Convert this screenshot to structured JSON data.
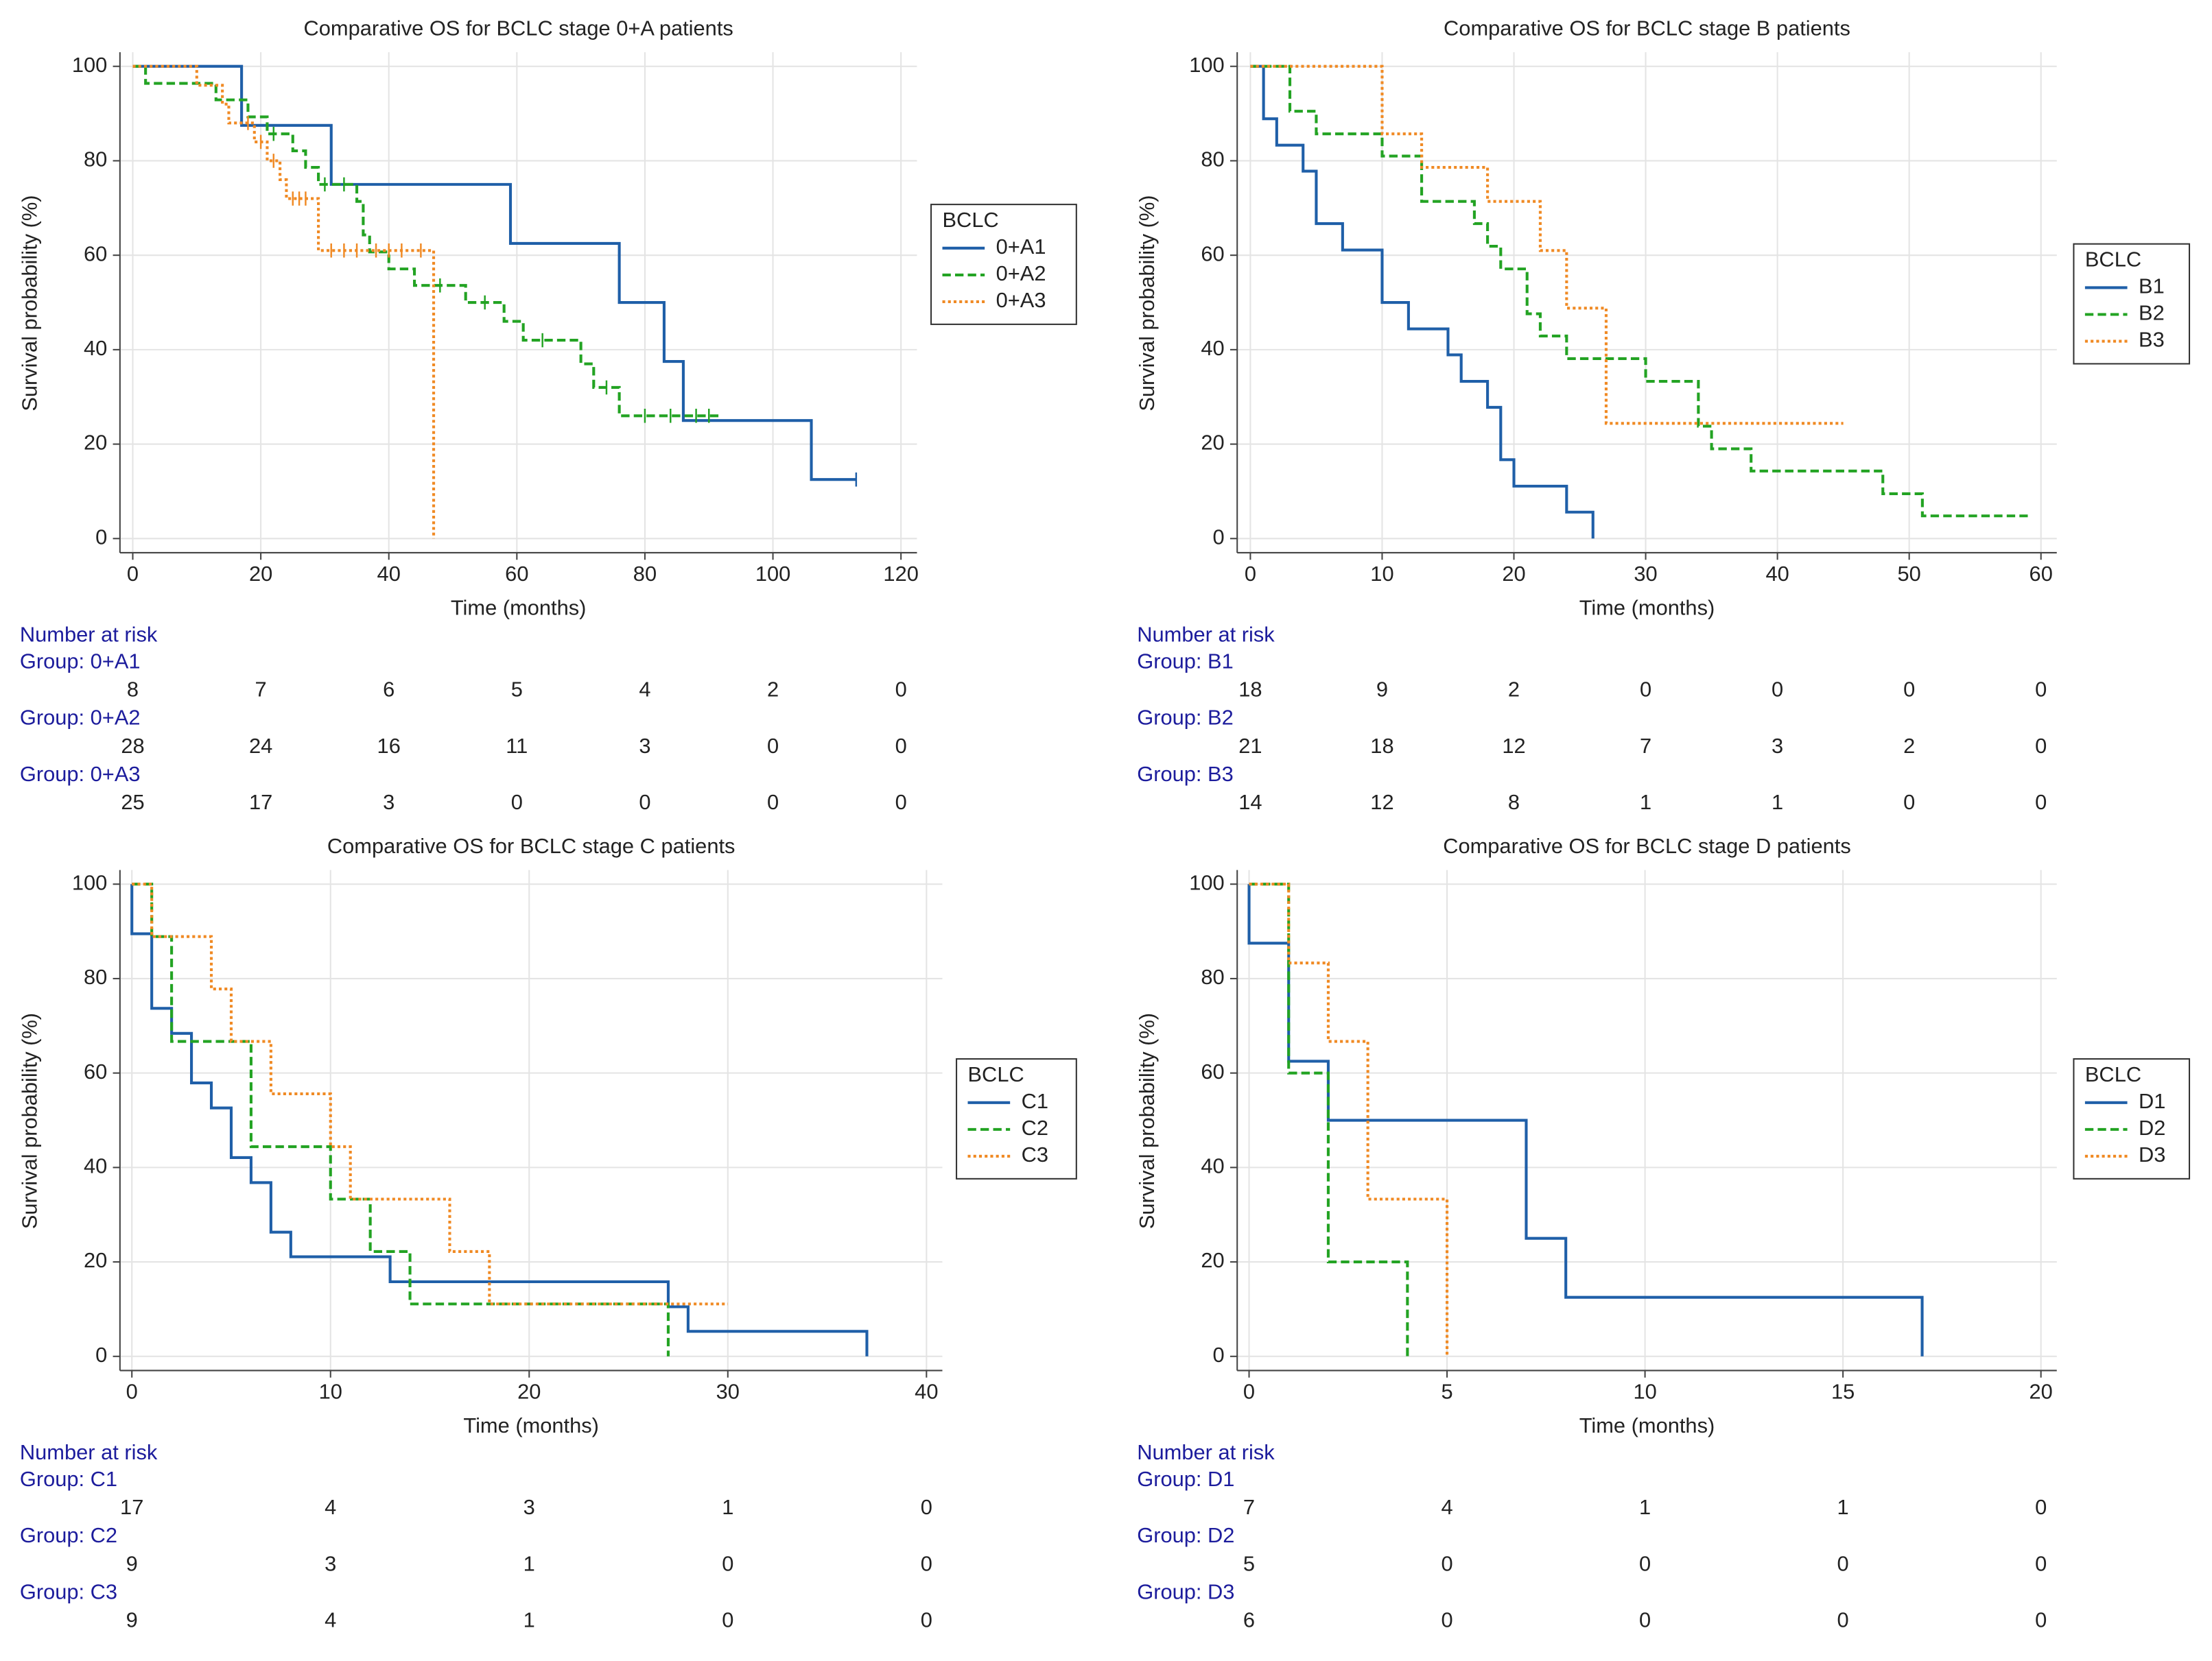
{
  "chart_data": [
    {
      "type": "step",
      "title": "Comparative OS for BCLC stage 0+A patients",
      "xlabel": "Time (months)",
      "ylabel": "Survival probability (%)",
      "xlim": [
        -2,
        122.5
      ],
      "xticks": [
        0,
        20,
        40,
        60,
        80,
        100,
        120
      ],
      "ylim": [
        -3,
        103
      ],
      "yticks": [
        0,
        20,
        40,
        60,
        80,
        100
      ],
      "grid": true,
      "legend_title": "BCLC",
      "series": [
        {
          "name": "0+A1",
          "color": "#1f5fa8",
          "dash": "solid",
          "x": [
            0,
            17,
            31,
            59,
            76,
            83,
            86,
            106,
            113
          ],
          "values": [
            100,
            87.5,
            75,
            62.5,
            50,
            37.5,
            25,
            12.5,
            12.5
          ],
          "censored": [
            113
          ]
        },
        {
          "name": "0+A2",
          "color": "#23a323",
          "dash": "dashed",
          "x": [
            0,
            2,
            13,
            18,
            21,
            25,
            27,
            29,
            35,
            36,
            37,
            40,
            44,
            52,
            58,
            61,
            70,
            72,
            76,
            92
          ],
          "values": [
            100,
            96.4,
            92.9,
            89.3,
            85.7,
            82.1,
            78.6,
            75,
            71.4,
            64.3,
            60.7,
            57.1,
            53.6,
            50,
            46,
            42,
            37,
            32,
            26,
            26
          ],
          "censored": [
            22,
            30,
            33,
            48,
            55,
            64,
            74,
            80,
            84,
            88,
            90
          ]
        },
        {
          "name": "0+A3",
          "color": "#f08a24",
          "dash": "dotted",
          "x": [
            0,
            10,
            14,
            15,
            19,
            21,
            23,
            24,
            29,
            47
          ],
          "values": [
            100,
            96,
            92,
            88,
            84,
            80,
            76,
            72,
            61,
            0
          ],
          "censored": [
            18,
            20,
            22,
            25,
            26,
            27,
            31,
            33,
            35,
            38,
            40,
            42,
            45
          ]
        }
      ],
      "risk_table": {
        "title": "Number at risk",
        "groups": [
          {
            "label": "Group: 0+A1",
            "counts": [
              8,
              7,
              6,
              5,
              4,
              2,
              0
            ]
          },
          {
            "label": "Group: 0+A2",
            "counts": [
              28,
              24,
              16,
              11,
              3,
              0,
              0
            ]
          },
          {
            "label": "Group: 0+A3",
            "counts": [
              25,
              17,
              3,
              0,
              0,
              0,
              0
            ]
          }
        ]
      }
    },
    {
      "type": "step",
      "title": "Comparative OS for BCLC stage B patients",
      "xlabel": "Time (months)",
      "ylabel": "Survival probability (%)",
      "xlim": [
        -1,
        61.2
      ],
      "xticks": [
        0,
        10,
        20,
        30,
        40,
        50,
        60
      ],
      "ylim": [
        -3,
        103
      ],
      "yticks": [
        0,
        20,
        40,
        60,
        80,
        100
      ],
      "grid": true,
      "legend_title": "BCLC",
      "series": [
        {
          "name": "B1",
          "color": "#1f5fa8",
          "dash": "solid",
          "x": [
            0,
            1,
            2,
            4,
            5,
            7,
            10,
            12,
            15,
            16,
            18,
            19,
            20,
            24,
            26
          ],
          "values": [
            100,
            88.9,
            83.3,
            77.8,
            66.7,
            61.1,
            50,
            44.4,
            38.9,
            33.3,
            27.8,
            16.7,
            11.1,
            5.6,
            0
          ]
        },
        {
          "name": "B2",
          "color": "#23a323",
          "dash": "dashed",
          "x": [
            0,
            3,
            5,
            10,
            13,
            17,
            18,
            19,
            21,
            22,
            24,
            30,
            34,
            35,
            38,
            48,
            51,
            59
          ],
          "values": [
            100,
            90.5,
            85.7,
            81,
            71.4,
            66.7,
            61.9,
            57.1,
            47.6,
            42.9,
            38.1,
            33.3,
            23.8,
            19,
            14.3,
            9.5,
            4.8,
            4.8
          ]
        },
        {
          "name": "B3",
          "color": "#f08a24",
          "dash": "dotted",
          "x": [
            0,
            10,
            13,
            18,
            22,
            24,
            27,
            45
          ],
          "values": [
            100,
            85.7,
            78.6,
            71.4,
            61,
            48.8,
            24.4,
            24.4
          ]
        }
      ],
      "risk_table": {
        "title": "Number at risk",
        "groups": [
          {
            "label": "Group: B1",
            "counts": [
              18,
              9,
              2,
              0,
              0,
              0,
              0
            ]
          },
          {
            "label": "Group: B2",
            "counts": [
              21,
              18,
              12,
              7,
              3,
              2,
              0
            ]
          },
          {
            "label": "Group: B3",
            "counts": [
              14,
              12,
              8,
              1,
              1,
              0,
              0
            ]
          }
        ]
      }
    },
    {
      "type": "step",
      "title": "Comparative OS for BCLC stage C patients",
      "xlabel": "Time (months)",
      "ylabel": "Survival probability (%)",
      "xlim": [
        -0.6,
        40.8
      ],
      "xticks": [
        0,
        10,
        20,
        30,
        40
      ],
      "ylim": [
        -3,
        103
      ],
      "yticks": [
        0,
        20,
        40,
        60,
        80,
        100
      ],
      "grid": true,
      "legend_title": "BCLC",
      "series": [
        {
          "name": "C1",
          "color": "#1f5fa8",
          "dash": "solid",
          "x": [
            0,
            0,
            1,
            2,
            3,
            4,
            5,
            6,
            7,
            8,
            13,
            27,
            28,
            37
          ],
          "values": [
            100,
            89.5,
            73.7,
            68.4,
            57.9,
            52.6,
            42.1,
            36.8,
            26.3,
            21.1,
            15.8,
            10.5,
            5.3,
            0
          ]
        },
        {
          "name": "C2",
          "color": "#23a323",
          "dash": "dashed",
          "x": [
            0,
            1,
            2,
            6,
            10,
            12,
            14,
            27
          ],
          "values": [
            100,
            88.9,
            66.7,
            44.4,
            33.3,
            22.2,
            11.1,
            0
          ]
        },
        {
          "name": "C3",
          "color": "#f08a24",
          "dash": "dotted",
          "x": [
            0,
            1,
            4,
            5,
            7,
            10,
            11,
            16,
            18,
            30
          ],
          "values": [
            100,
            88.9,
            77.8,
            66.7,
            55.6,
            44.4,
            33.3,
            22.2,
            11.1,
            11.1
          ]
        }
      ],
      "risk_table": {
        "title": "Number at risk",
        "groups": [
          {
            "label": "Group: C1",
            "counts": [
              17,
              4,
              3,
              1,
              0
            ]
          },
          {
            "label": "Group: C2",
            "counts": [
              9,
              3,
              1,
              0,
              0
            ]
          },
          {
            "label": "Group: C3",
            "counts": [
              9,
              4,
              1,
              0,
              0
            ]
          }
        ]
      }
    },
    {
      "type": "step",
      "title": "Comparative OS for BCLC stage D patients",
      "xlabel": "Time (months)",
      "ylabel": "Survival probability (%)",
      "xlim": [
        -0.3,
        20.4
      ],
      "xticks": [
        0,
        5,
        10,
        15,
        20
      ],
      "ylim": [
        -3,
        103
      ],
      "yticks": [
        0,
        20,
        40,
        60,
        80,
        100
      ],
      "grid": true,
      "legend_title": "BCLC",
      "series": [
        {
          "name": "D1",
          "color": "#1f5fa8",
          "dash": "solid",
          "x": [
            0,
            0,
            1,
            2,
            7,
            8,
            17
          ],
          "values": [
            100,
            87.5,
            62.5,
            50,
            25,
            12.5,
            0
          ]
        },
        {
          "name": "D2",
          "color": "#23a323",
          "dash": "dashed",
          "x": [
            0,
            1,
            2,
            4
          ],
          "values": [
            100,
            60,
            20,
            0
          ]
        },
        {
          "name": "D3",
          "color": "#f08a24",
          "dash": "dotted",
          "x": [
            0,
            1,
            2,
            3,
            5
          ],
          "values": [
            100,
            83.3,
            66.7,
            33.3,
            0
          ]
        }
      ],
      "risk_table": {
        "title": "Number at risk",
        "groups": [
          {
            "label": "Group: D1",
            "counts": [
              7,
              4,
              1,
              1,
              0
            ]
          },
          {
            "label": "Group: D2",
            "counts": [
              5,
              0,
              0,
              0,
              0
            ]
          },
          {
            "label": "Group: D3",
            "counts": [
              6,
              0,
              0,
              0,
              0
            ]
          }
        ]
      }
    }
  ]
}
